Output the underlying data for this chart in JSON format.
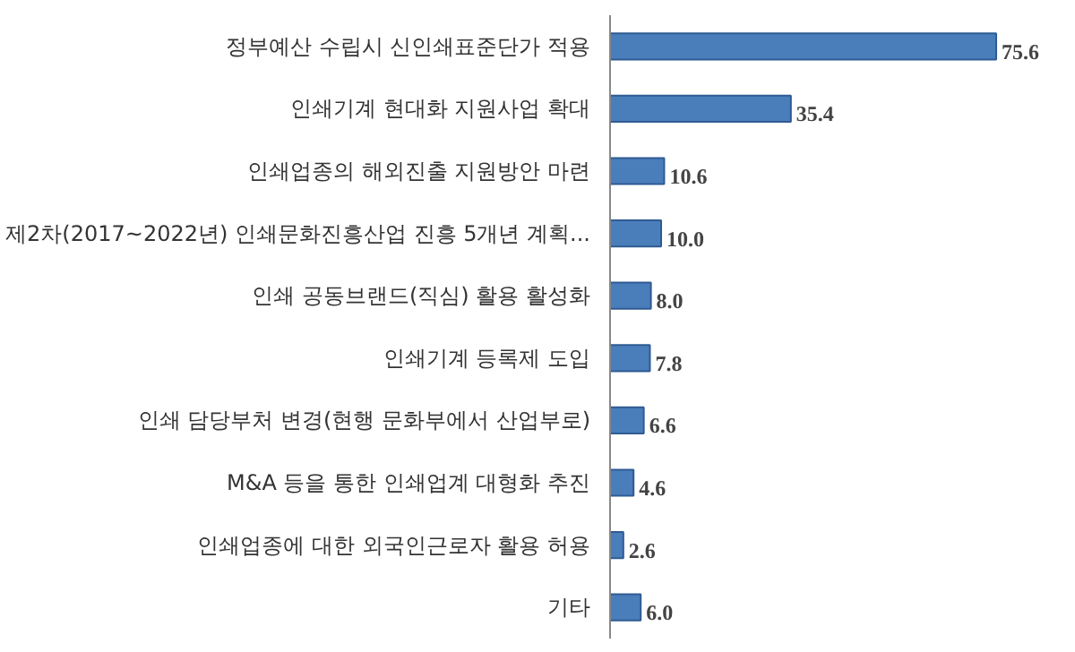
{
  "chart_data": {
    "type": "bar",
    "orientation": "horizontal",
    "grid": false,
    "color": "#4a7ebb",
    "categories": [
      "정부예산 수립시 신인쇄표준단가 적용",
      "인쇄기계 현대화 지원사업 확대",
      "인쇄업종의 해외진출 지원방안 마련",
      "제2차(2017~2022년) 인쇄문화진흥산업 진흥 5개년 계획...",
      "인쇄 공동브랜드(직심) 활용 활성화",
      "인쇄기계 등록제 도입",
      "인쇄 담당부처 변경(현행 문화부에서 산업부로)",
      "M&A 등을 통한 인쇄업계 대형화 추진",
      "인쇄업종에 대한 외국인근로자 활용 허용",
      "기타"
    ],
    "values": [
      75.6,
      35.4,
      10.6,
      10.0,
      8.0,
      7.8,
      6.6,
      4.6,
      2.6,
      6.0
    ],
    "value_labels": [
      "75.6",
      "35.4",
      "10.6",
      "10.0",
      "8.0",
      "7.8",
      "6.6",
      "4.6",
      "2.6",
      "6.0"
    ]
  }
}
